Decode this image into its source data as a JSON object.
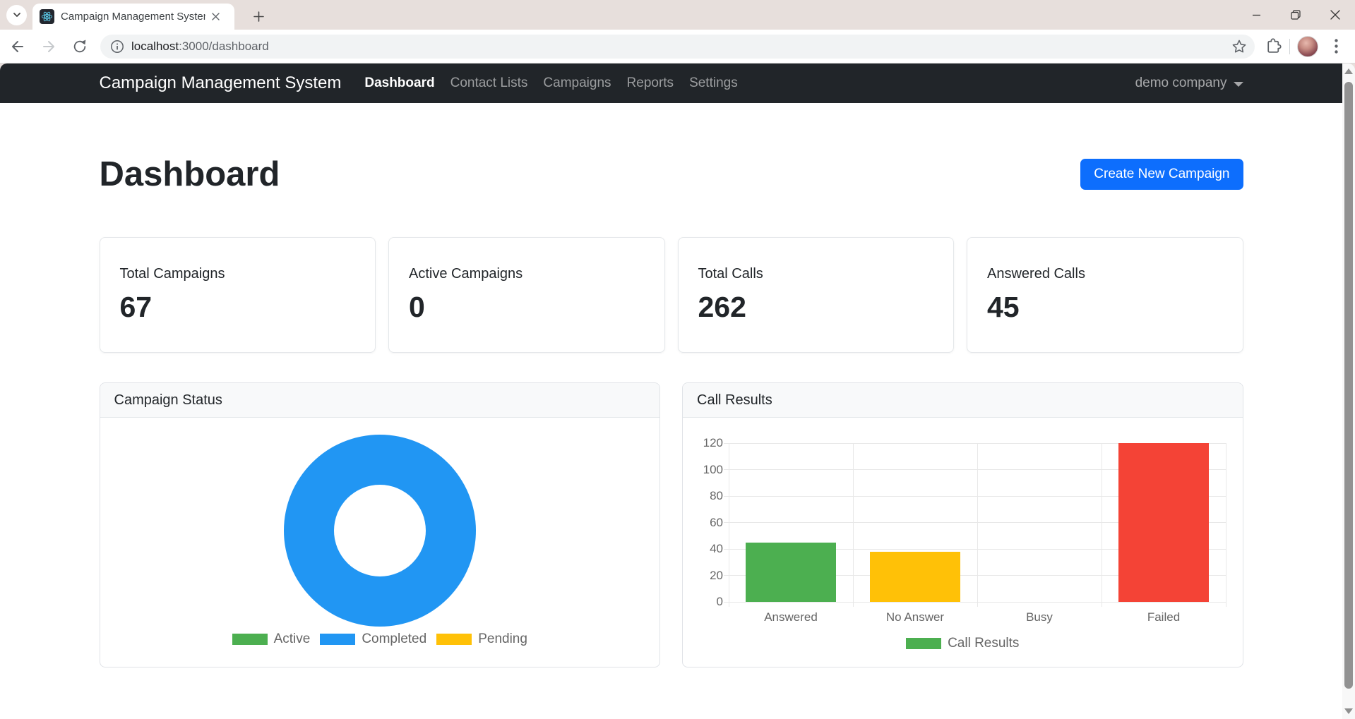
{
  "browser": {
    "tab": {
      "title": "Campaign Management System",
      "favicon": "react-logo"
    },
    "url_host": "localhost",
    "url_rest": ":3000/dashboard",
    "new_tab_label": "+",
    "window_controls": [
      "minimize",
      "maximize",
      "close"
    ]
  },
  "navbar": {
    "brand": "Campaign Management System",
    "items": [
      {
        "label": "Dashboard",
        "active": true
      },
      {
        "label": "Contact Lists",
        "active": false
      },
      {
        "label": "Campaigns",
        "active": false
      },
      {
        "label": "Reports",
        "active": false
      },
      {
        "label": "Settings",
        "active": false
      }
    ],
    "account": "demo company"
  },
  "page": {
    "title": "Dashboard",
    "create_button": "Create New Campaign"
  },
  "stats": [
    {
      "label": "Total Campaigns",
      "value": "67"
    },
    {
      "label": "Active Campaigns",
      "value": "0"
    },
    {
      "label": "Total Calls",
      "value": "262"
    },
    {
      "label": "Answered Calls",
      "value": "45"
    }
  ],
  "chart_data": [
    {
      "type": "pie",
      "variant": "doughnut",
      "title": "Campaign Status",
      "labels": [
        "Active",
        "Completed",
        "Pending"
      ],
      "values": [
        0,
        100,
        0
      ],
      "unit": "percent",
      "colors": [
        "#4caf50",
        "#2196f3",
        "#ffc107"
      ],
      "legend_position": "bottom"
    },
    {
      "type": "bar",
      "title": "Call Results",
      "categories": [
        "Answered",
        "No Answer",
        "Busy",
        "Failed"
      ],
      "values": [
        45,
        38,
        0,
        120
      ],
      "colors": [
        "#4caf50",
        "#ffc107",
        "#9e9e9e",
        "#f44336"
      ],
      "xlabel": "",
      "ylabel": "",
      "ylim": [
        0,
        120
      ],
      "ytick_step": 20,
      "grid": true,
      "legend": [
        {
          "label": "Call Results",
          "color": "#4caf50"
        }
      ],
      "legend_position": "bottom"
    }
  ]
}
